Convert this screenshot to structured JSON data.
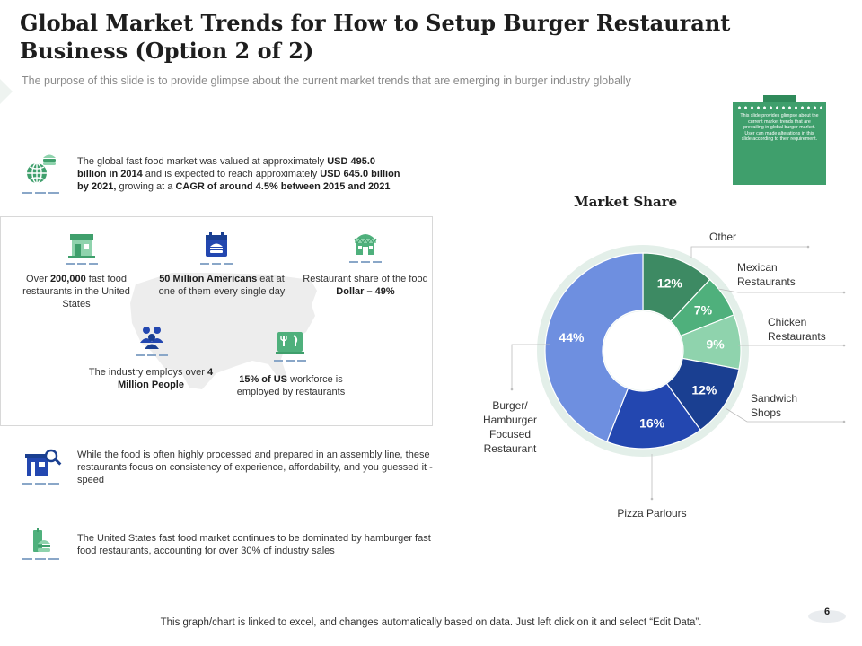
{
  "header": {
    "title": "Global Market Trends for How to Setup Burger Restaurant Business (Option 2 of 2)",
    "subtitle": "The purpose of this slide is to provide glimpse about the current market trends that are emerging in burger industry globally"
  },
  "facts": {
    "global": {
      "t1": "The global fast food market was valued at approximately ",
      "b1": "USD  495.0",
      "t2": "",
      "b2": "billion  in 2014",
      "t3": " and is expected to reach approximately ",
      "b3": "USD 645.0 billion",
      "t4": "",
      "b4": "by 2021,",
      "t5": " growing at a ",
      "b5": "CAGR  of around 4.5% between 2015 and 2021"
    },
    "process": "While the food is often highly processed and prepared in an assembly line, these restaurants focus on consistency of experience, affordability, and you guessed it - speed",
    "dominance": "The United States fast food market continues to be dominated by hamburger fast food restaurants, accounting for over 30% of industry sales"
  },
  "us_stats": {
    "restaurants": {
      "t1": "Over ",
      "b1": "200,000",
      "t2": " fast food restaurants in the United States"
    },
    "americans": {
      "b1": "50 Million Americans",
      "t1": " eat at one of them every single day"
    },
    "dollar": {
      "t1": "Restaurant share of the food ",
      "b1": "Dollar – 49%"
    },
    "employs": {
      "t1": "The industry employs over ",
      "b1": "4 Million People"
    },
    "workforce": {
      "b1": "15% of US",
      "t1": " workforce is employed by restaurants"
    }
  },
  "note": {
    "text": "This slide provides glimpse about the current market trends that are prevailing in global burger market. User can made alterations in this slide according to their requirement."
  },
  "chart_data": {
    "type": "pie",
    "title": "Market Share",
    "donut": true,
    "slices": [
      {
        "label": "Other",
        "value": 12,
        "display": "12%",
        "color": "#3d8a63"
      },
      {
        "label": "Mexican Restaurants",
        "value": 7,
        "display": "7%",
        "color": "#4fb07c"
      },
      {
        "label": "Chicken Restaurants",
        "value": 9,
        "display": "9%",
        "color": "#8fd3ad"
      },
      {
        "label": "Sandwich Shops",
        "value": 12,
        "display": "12%",
        "color": "#1a3f91"
      },
      {
        "label": "Pizza Parlours",
        "value": 16,
        "display": "16%",
        "color": "#2347b0"
      },
      {
        "label": "Burger/ Hamburger Focused Restaurant",
        "value": 44,
        "display": "44%",
        "color": "#6e8fe0"
      }
    ]
  },
  "footer": {
    "text": "This graph/chart is linked to excel, and changes automatically based on data. Just left click on it and select “Edit Data”.",
    "page": "6"
  }
}
